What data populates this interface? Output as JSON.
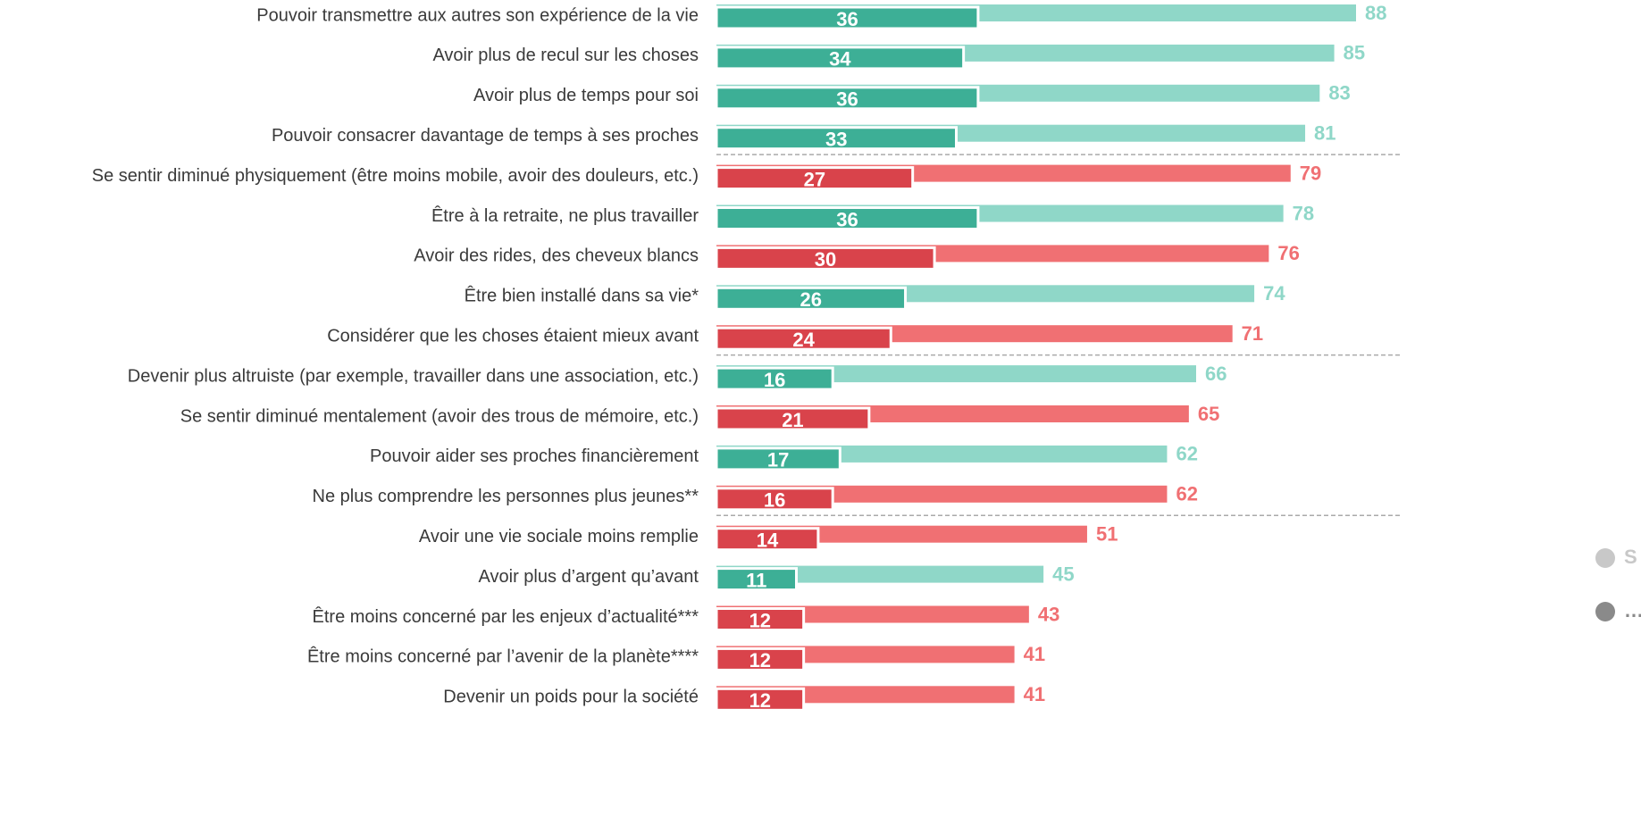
{
  "chart_data": {
    "type": "bar",
    "orientation": "horizontal",
    "categories": [
      "Pouvoir transmettre aux autres son expérience de la vie",
      "Avoir plus de recul sur les choses",
      "Avoir plus de temps pour soi",
      "Pouvoir consacrer davantage de temps à ses proches",
      "Se sentir diminué physiquement (être moins mobile, avoir des douleurs, etc.)",
      "Être à la retraite, ne plus travailler",
      "Avoir des rides, des cheveux blancs",
      "Être bien installé dans sa vie*",
      "Considérer que les choses étaient mieux avant",
      "Devenir plus altruiste (par exemple, travailler dans une association, etc.)",
      "Se sentir diminué mentalement (avoir des trous de mémoire, etc.)",
      "Pouvoir aider ses proches financièrement",
      "Ne plus comprendre les personnes plus jeunes**",
      "Avoir une vie sociale moins remplie",
      "Avoir plus d’argent qu’avant",
      "Être moins concerné par les enjeux d’actualité***",
      "Être moins concerné par l’avenir de la planète****",
      "Devenir un poids pour la société"
    ],
    "values": [
      88,
      85,
      83,
      81,
      79,
      78,
      76,
      74,
      71,
      66,
      65,
      62,
      62,
      51,
      45,
      43,
      41,
      41
    ],
    "sub_values": [
      36,
      34,
      36,
      33,
      27,
      36,
      30,
      26,
      24,
      16,
      21,
      17,
      16,
      14,
      11,
      12,
      12,
      12
    ],
    "colors": [
      "#8fd7c8",
      "#8fd7c8",
      "#8fd7c8",
      "#8fd7c8",
      "#f07073",
      "#8fd7c8",
      "#f07073",
      "#8fd7c8",
      "#f07073",
      "#8fd7c8",
      "#f07073",
      "#8fd7c8",
      "#f07073",
      "#f07073",
      "#8fd7c8",
      "#f07073",
      "#f07073",
      "#f07073"
    ],
    "sub_colors": [
      "#3daf96",
      "#3daf96",
      "#3daf96",
      "#3daf96",
      "#d9434b",
      "#3daf96",
      "#d9434b",
      "#3daf96",
      "#d9434b",
      "#3daf96",
      "#d9434b",
      "#3daf96",
      "#d9434b",
      "#d9434b",
      "#3daf96",
      "#d9434b",
      "#d9434b",
      "#d9434b"
    ],
    "legend": [
      {
        "label": "S",
        "color": "#c8c8c8"
      },
      {
        "label": "…",
        "color": "#8a8a8a"
      }
    ]
  }
}
